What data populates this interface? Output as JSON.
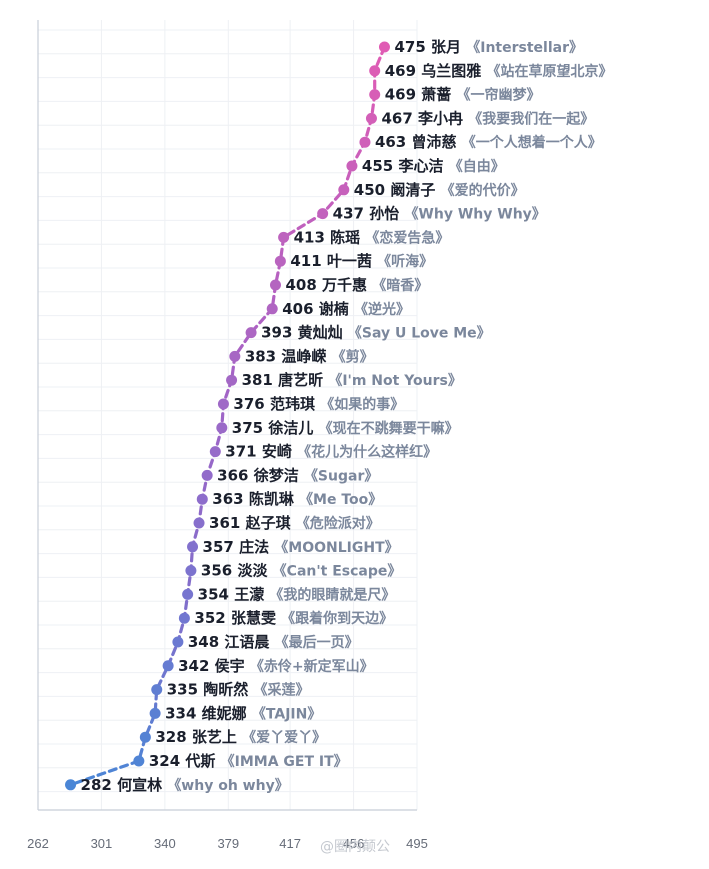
{
  "chart_data": {
    "type": "line",
    "x_axis": {
      "min": 262,
      "max": 495,
      "ticks": [
        262,
        301,
        340,
        379,
        417,
        456,
        495
      ]
    },
    "points": [
      {
        "score": 475,
        "name": "张月",
        "song": "《Interstellar》"
      },
      {
        "score": 469,
        "name": "乌兰图雅",
        "song": "《站在草原望北京》"
      },
      {
        "score": 469,
        "name": "萧蔷",
        "song": "《一帘幽梦》"
      },
      {
        "score": 467,
        "name": "李小冉",
        "song": "《我要我们在一起》"
      },
      {
        "score": 463,
        "name": "曾沛慈",
        "song": "《一个人想着一个人》"
      },
      {
        "score": 455,
        "name": "李心洁",
        "song": "《自由》"
      },
      {
        "score": 450,
        "name": "阚清子",
        "song": "《爱的代价》"
      },
      {
        "score": 437,
        "name": "孙怡",
        "song": "《Why Why Why》"
      },
      {
        "score": 413,
        "name": "陈瑶",
        "song": "《恋爱告急》"
      },
      {
        "score": 411,
        "name": "叶一茜",
        "song": "《听海》"
      },
      {
        "score": 408,
        "name": "万千惠",
        "song": "《暗香》"
      },
      {
        "score": 406,
        "name": "谢楠",
        "song": "《逆光》"
      },
      {
        "score": 393,
        "name": "黄灿灿",
        "song": "《Say U Love Me》"
      },
      {
        "score": 383,
        "name": "温峥嵘",
        "song": "《剪》"
      },
      {
        "score": 381,
        "name": "唐艺昕",
        "song": "《I'm Not Yours》"
      },
      {
        "score": 376,
        "name": "范玮琪",
        "song": "《如果的事》"
      },
      {
        "score": 375,
        "name": "徐洁儿",
        "song": "《现在不跳舞要干嘛》"
      },
      {
        "score": 371,
        "name": "安崎",
        "song": "《花儿为什么这样红》"
      },
      {
        "score": 366,
        "name": "徐梦洁",
        "song": "《Sugar》"
      },
      {
        "score": 363,
        "name": "陈凯琳",
        "song": "《Me Too》"
      },
      {
        "score": 361,
        "name": "赵子琪",
        "song": "《危险派对》"
      },
      {
        "score": 357,
        "name": "庄法",
        "song": "《MOONLIGHT》"
      },
      {
        "score": 356,
        "name": "淡淡",
        "song": "《Can't Escape》"
      },
      {
        "score": 354,
        "name": "王濛",
        "song": "《我的眼睛就是尺》"
      },
      {
        "score": 352,
        "name": "张慧雯",
        "song": "《跟着你到天边》"
      },
      {
        "score": 348,
        "name": "江语晨",
        "song": "《最后一页》"
      },
      {
        "score": 342,
        "name": "侯宇",
        "song": "《赤伶+新定军山》"
      },
      {
        "score": 335,
        "name": "陶昕然",
        "song": "《采莲》"
      },
      {
        "score": 334,
        "name": "维妮娜",
        "song": "《TAJIN》"
      },
      {
        "score": 328,
        "name": "张艺上",
        "song": "《爱丫爱丫》"
      },
      {
        "score": 324,
        "name": "代斯",
        "song": "《IMMA GET IT》"
      },
      {
        "score": 282,
        "name": "何宣林",
        "song": "《why oh why》"
      }
    ],
    "line_style": "dashed",
    "colors": {
      "top": "#e05cb4",
      "bottom": "#4a86d6"
    },
    "grid": true
  },
  "watermark": "@圈内颠公"
}
